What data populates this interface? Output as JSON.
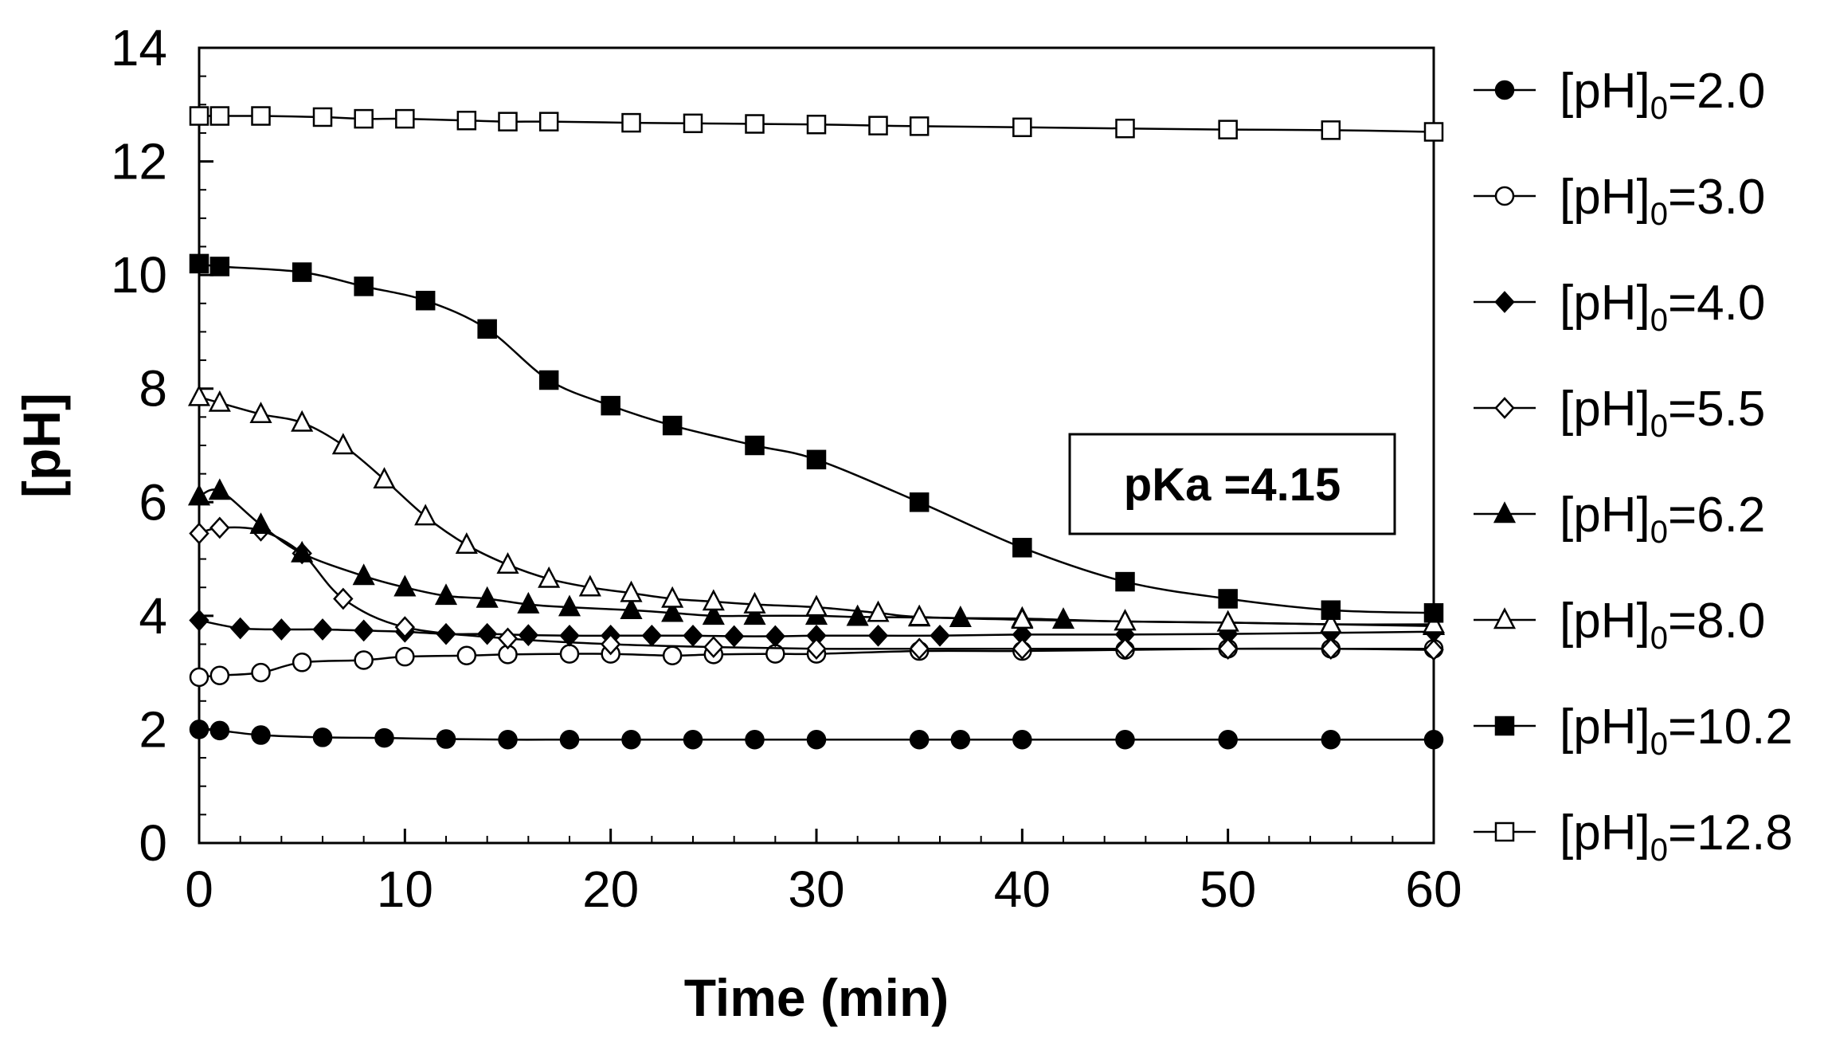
{
  "chart_data": {
    "type": "line",
    "title": "",
    "xlabel": "Time (min)",
    "ylabel": "[pH]",
    "xlim": [
      0,
      60
    ],
    "ylim": [
      0,
      14
    ],
    "xticks": [
      0,
      10,
      20,
      30,
      40,
      50,
      60
    ],
    "yticks": [
      0,
      2,
      4,
      6,
      8,
      10,
      12,
      14
    ],
    "grid": false,
    "legend_position": "right",
    "annotation": "pKa =4.15",
    "series": [
      {
        "name": "[pH]0=2.0",
        "label_main": "[pH]",
        "label_sub": "0",
        "label_rest": "=2.0",
        "marker": "circle",
        "filled": true,
        "x": [
          0,
          1,
          3,
          6,
          9,
          12,
          15,
          18,
          21,
          24,
          27,
          30,
          35,
          37,
          40,
          45,
          50,
          55,
          60
        ],
        "y": [
          2.0,
          1.98,
          1.9,
          1.86,
          1.85,
          1.83,
          1.82,
          1.82,
          1.82,
          1.82,
          1.82,
          1.82,
          1.82,
          1.82,
          1.82,
          1.82,
          1.82,
          1.82,
          1.82
        ]
      },
      {
        "name": "[pH]0=3.0",
        "label_main": "[pH]",
        "label_sub": "0",
        "label_rest": "=3.0",
        "marker": "circle",
        "filled": false,
        "x": [
          0,
          1,
          3,
          5,
          8,
          10,
          13,
          15,
          18,
          20,
          23,
          25,
          28,
          30,
          35,
          40,
          45,
          50,
          55,
          60
        ],
        "y": [
          2.92,
          2.95,
          3.0,
          3.18,
          3.22,
          3.28,
          3.3,
          3.32,
          3.33,
          3.33,
          3.3,
          3.32,
          3.33,
          3.33,
          3.38,
          3.38,
          3.4,
          3.42,
          3.42,
          3.42
        ]
      },
      {
        "name": "[pH]0=4.0",
        "label_main": "[pH]",
        "label_sub": "0",
        "label_rest": "=4.0",
        "marker": "diamond",
        "filled": true,
        "x": [
          0,
          2,
          4,
          6,
          8,
          10,
          12,
          14,
          16,
          18,
          20,
          22,
          24,
          26,
          28,
          30,
          33,
          36,
          40,
          45,
          50,
          55,
          60
        ],
        "y": [
          3.92,
          3.78,
          3.76,
          3.76,
          3.74,
          3.72,
          3.68,
          3.68,
          3.66,
          3.65,
          3.65,
          3.65,
          3.65,
          3.64,
          3.64,
          3.65,
          3.65,
          3.65,
          3.67,
          3.67,
          3.68,
          3.7,
          3.72
        ]
      },
      {
        "name": "[pH]0=5.5",
        "label_main": "[pH]",
        "label_sub": "0",
        "label_rest": "=5.5",
        "marker": "diamond",
        "filled": false,
        "x": [
          0,
          1,
          3,
          5,
          7,
          10,
          15,
          20,
          25,
          30,
          35,
          40,
          45,
          50,
          55,
          60
        ],
        "y": [
          5.45,
          5.55,
          5.5,
          5.1,
          4.3,
          3.8,
          3.6,
          3.5,
          3.45,
          3.42,
          3.42,
          3.42,
          3.42,
          3.42,
          3.42,
          3.4
        ]
      },
      {
        "name": "[pH]0=6.2",
        "label_main": "[pH]",
        "label_sub": "0",
        "label_rest": "=6.2",
        "marker": "triangle",
        "filled": true,
        "x": [
          0,
          1,
          3,
          5,
          8,
          10,
          12,
          14,
          16,
          18,
          21,
          23,
          25,
          27,
          30,
          32,
          35,
          37,
          40,
          42,
          45,
          50,
          55,
          60
        ],
        "y": [
          6.1,
          6.2,
          5.6,
          5.1,
          4.7,
          4.5,
          4.35,
          4.3,
          4.2,
          4.15,
          4.1,
          4.05,
          4.0,
          4.0,
          4.0,
          3.98,
          3.97,
          3.96,
          3.95,
          3.93,
          3.9,
          3.88,
          3.85,
          3.82
        ]
      },
      {
        "name": "[pH]0=8.0",
        "label_main": "[pH]",
        "label_sub": "0",
        "label_rest": "=8.0",
        "marker": "triangle",
        "filled": false,
        "x": [
          0,
          1,
          3,
          5,
          7,
          9,
          11,
          13,
          15,
          17,
          19,
          21,
          23,
          25,
          27,
          30,
          33,
          35,
          40,
          45,
          50,
          55,
          60
        ],
        "y": [
          7.85,
          7.75,
          7.55,
          7.4,
          7.0,
          6.4,
          5.75,
          5.25,
          4.9,
          4.65,
          4.5,
          4.4,
          4.3,
          4.25,
          4.2,
          4.15,
          4.05,
          3.98,
          3.93,
          3.9,
          3.88,
          3.85,
          3.85
        ]
      },
      {
        "name": "[pH]0=10.2",
        "label_main": "[pH]",
        "label_sub": "0",
        "label_rest": "=10.2",
        "marker": "square",
        "filled": true,
        "x": [
          0,
          1,
          5,
          8,
          11,
          14,
          17,
          20,
          23,
          27,
          30,
          35,
          40,
          45,
          50,
          55,
          60
        ],
        "y": [
          10.2,
          10.15,
          10.05,
          9.8,
          9.55,
          9.05,
          8.15,
          7.7,
          7.35,
          7.0,
          6.75,
          6.0,
          5.2,
          4.6,
          4.3,
          4.1,
          4.05
        ]
      },
      {
        "name": "[pH]0=12.8",
        "label_main": "[pH]",
        "label_sub": "0",
        "label_rest": "=12.8",
        "marker": "square",
        "filled": false,
        "x": [
          0,
          1,
          3,
          6,
          8,
          10,
          13,
          15,
          17,
          21,
          24,
          27,
          30,
          33,
          35,
          40,
          45,
          50,
          55,
          60
        ],
        "y": [
          12.8,
          12.8,
          12.8,
          12.78,
          12.75,
          12.75,
          12.72,
          12.7,
          12.7,
          12.68,
          12.67,
          12.66,
          12.65,
          12.63,
          12.62,
          12.6,
          12.58,
          12.56,
          12.55,
          12.52
        ]
      }
    ]
  }
}
